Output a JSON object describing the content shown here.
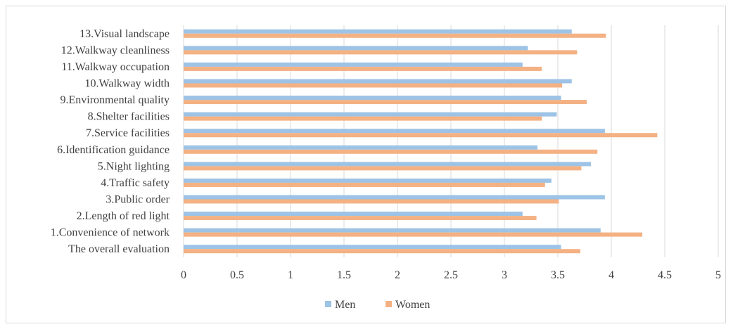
{
  "chart_data": {
    "type": "bar",
    "orientation": "horizontal",
    "categories": [
      "13.Visual landscape",
      "12.Walkway cleanliness",
      "11.Walkway occupation",
      "10.Walkway width",
      "9.Environmental quality",
      "8.Shelter facilities",
      "7.Service facilities",
      "6.Identification guidance",
      "5.Night lighting",
      "4.Traffic safety",
      "3.Public order",
      "2.Length of red light",
      "1.Convenience of network",
      "The overall evaluation"
    ],
    "series": [
      {
        "name": "Men",
        "color": "#9DC3E6",
        "values": [
          3.63,
          3.22,
          3.17,
          3.63,
          3.53,
          3.49,
          3.94,
          3.31,
          3.81,
          3.44,
          3.94,
          3.17,
          3.9,
          3.53
        ]
      },
      {
        "name": "Women",
        "color": "#F4B183",
        "values": [
          3.95,
          3.68,
          3.35,
          3.54,
          3.77,
          3.35,
          4.43,
          3.87,
          3.72,
          3.38,
          3.51,
          3.3,
          4.29,
          3.71
        ]
      }
    ],
    "xlim": [
      0,
      5
    ],
    "xticks": [
      "0",
      "0.5",
      "1",
      "1.5",
      "2",
      "2.5",
      "3",
      "3.5",
      "4",
      "4.5",
      "5"
    ],
    "grid": true,
    "legend_position": "bottom",
    "title": "",
    "xlabel": "",
    "ylabel": ""
  }
}
